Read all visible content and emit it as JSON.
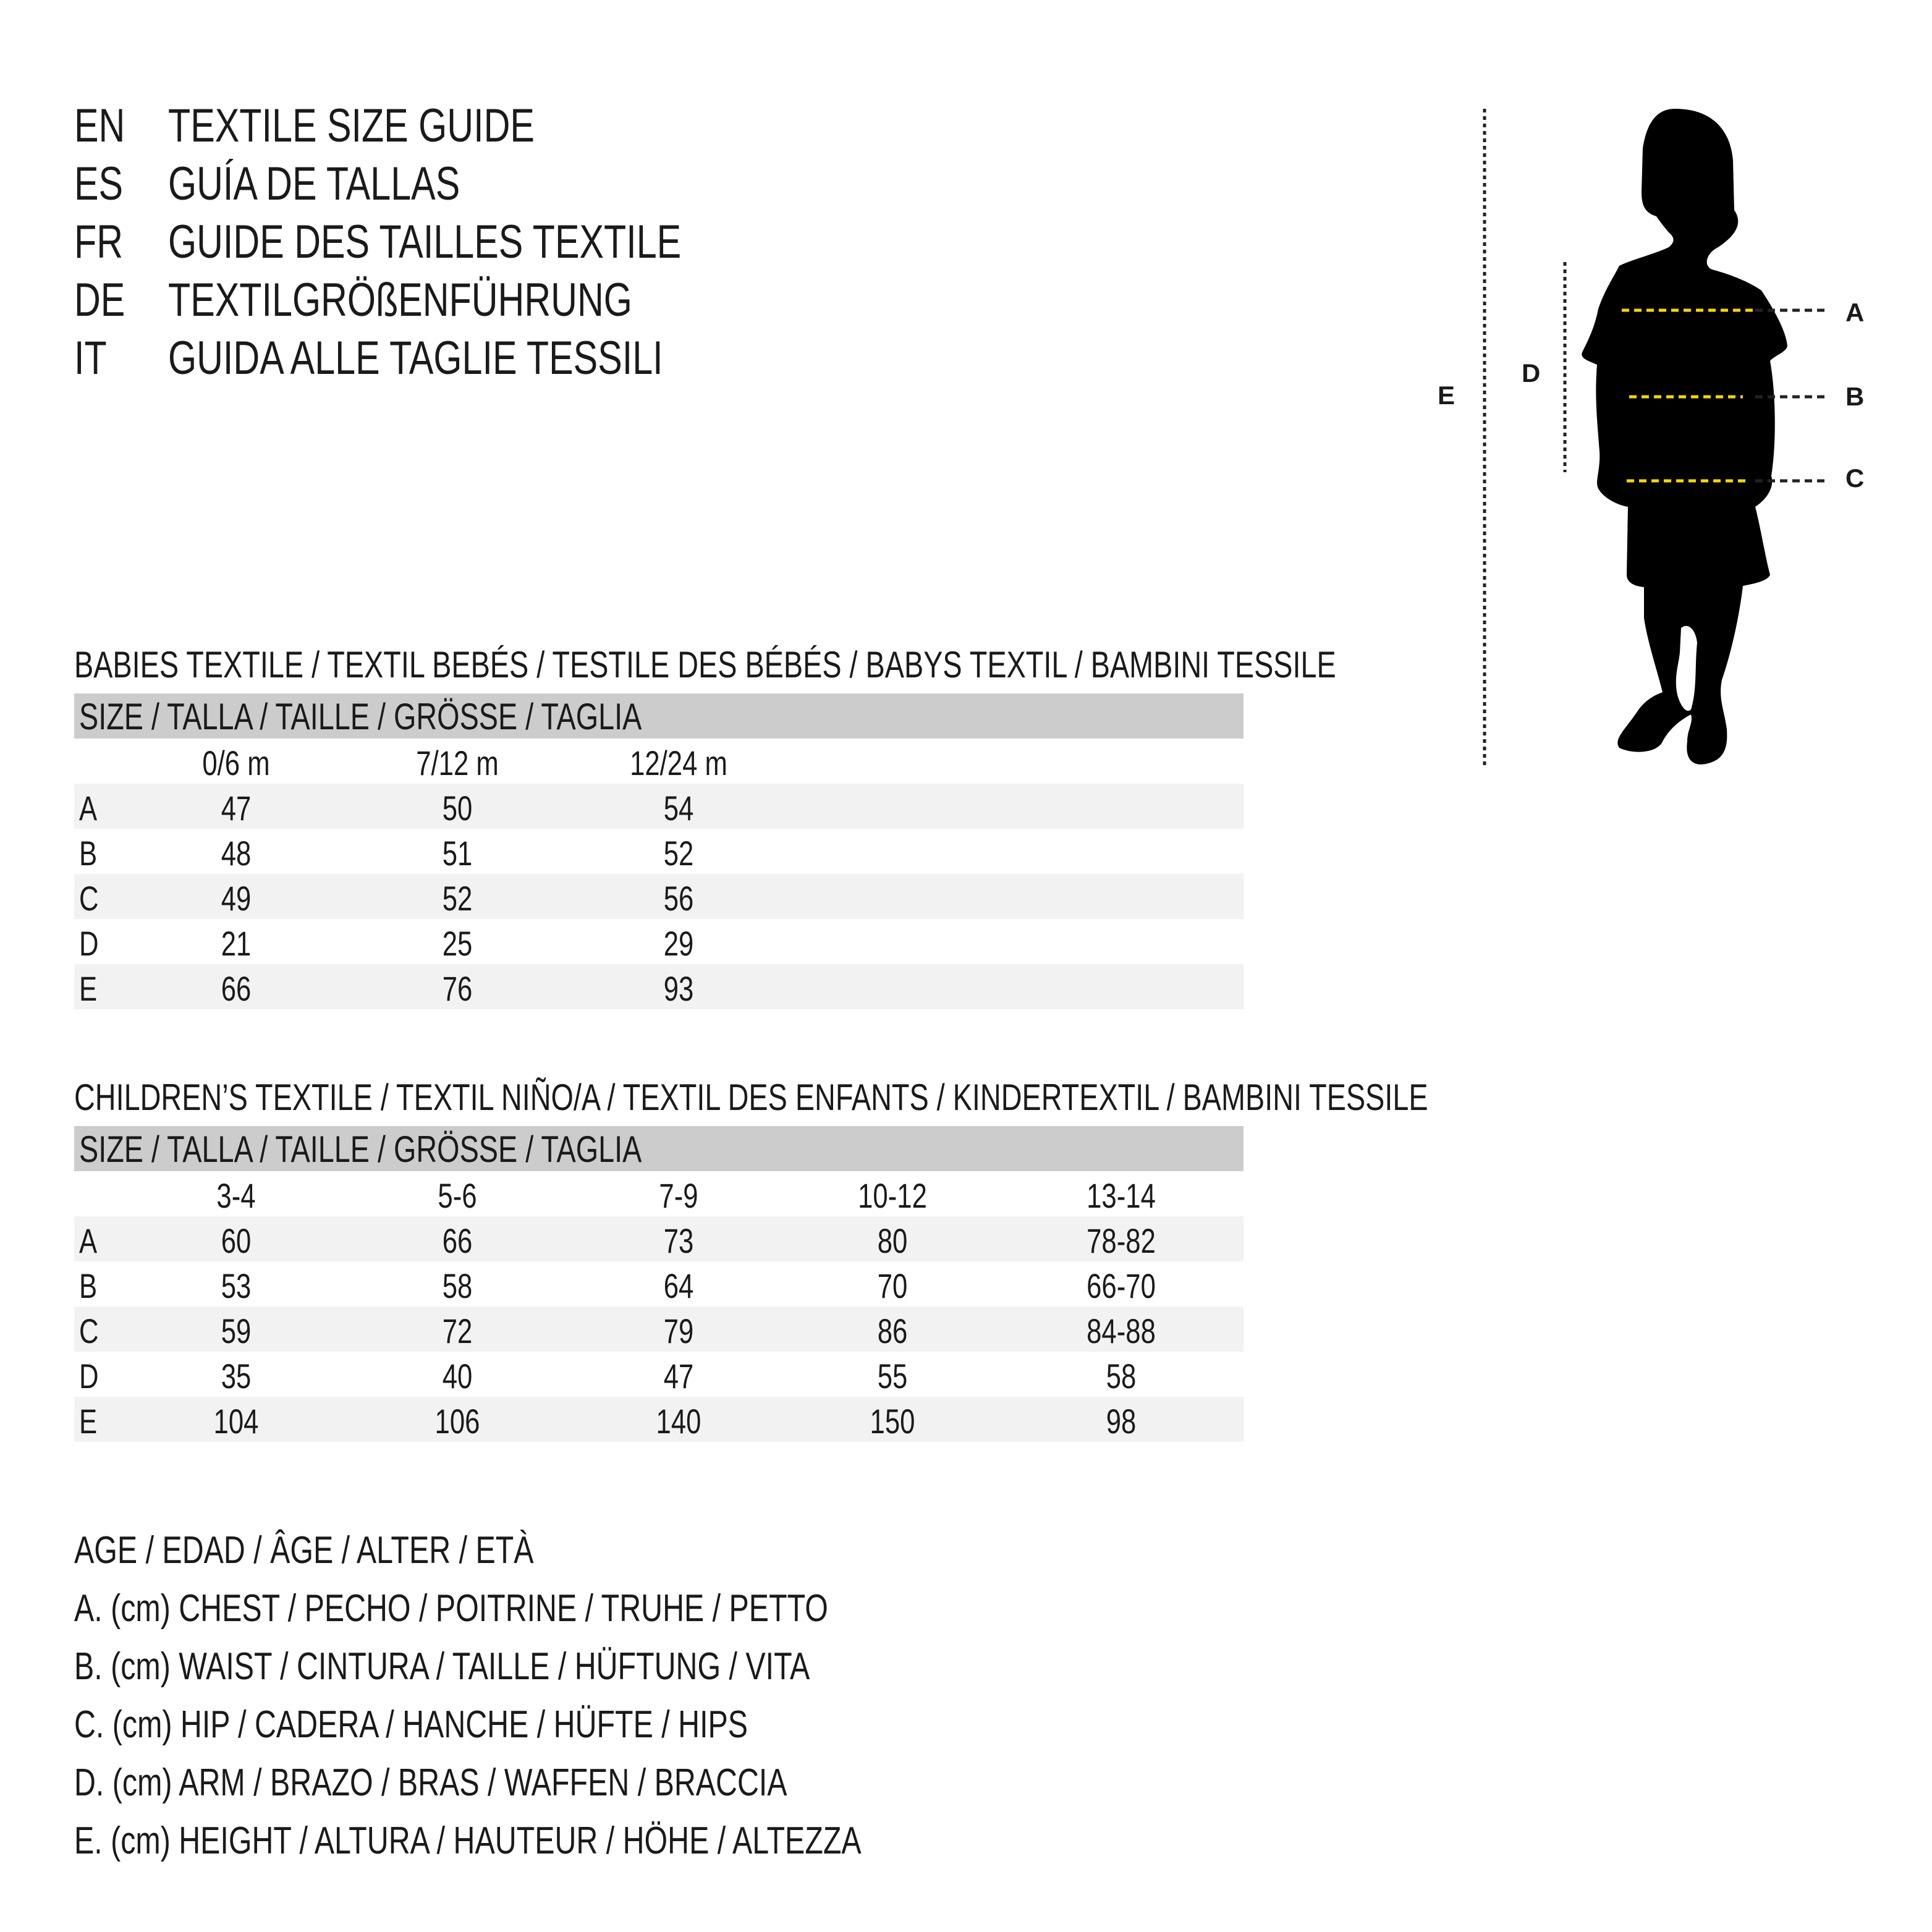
{
  "titles": [
    {
      "lang": "EN",
      "text": "TEXTILE SIZE GUIDE"
    },
    {
      "lang": "ES",
      "text": "GUÍA DE TALLAS"
    },
    {
      "lang": "FR",
      "text": "GUIDE DES TAILLES TEXTILE"
    },
    {
      "lang": "DE",
      "text": "TEXTILGRÖßENFÜHRUNG"
    },
    {
      "lang": "IT",
      "text": "GUIDA ALLE TAGLIE TESSILI"
    }
  ],
  "figure": {
    "labels": {
      "a": "A",
      "b": "B",
      "c": "C",
      "d": "D",
      "e": "E"
    },
    "colors": {
      "silhouette": "#000000",
      "measure_line": "#f5d800",
      "guide_line": "#222222"
    }
  },
  "babies": {
    "title": "BABIES TEXTILE / TEXTIL BEBÉS / TESTILE DES BÉBÉS / BABYS TEXTIL / BAMBINI TESSILE",
    "header": "SIZE / TALLA / TAILLE / GRÖSSE / TAGLIA",
    "columns": [
      "0/6 m",
      "7/12 m",
      "12/24 m"
    ],
    "rows": [
      {
        "label": "A",
        "values": [
          "47",
          "50",
          "54"
        ]
      },
      {
        "label": "B",
        "values": [
          "48",
          "51",
          "52"
        ]
      },
      {
        "label": "C",
        "values": [
          "49",
          "52",
          "56"
        ]
      },
      {
        "label": "D",
        "values": [
          "21",
          "25",
          "29"
        ]
      },
      {
        "label": "E",
        "values": [
          "66",
          "76",
          "93"
        ]
      }
    ]
  },
  "children": {
    "title": "CHILDREN’S TEXTILE / TEXTIL NIÑO/A / TEXTIL DES ENFANTS / KINDERTEXTIL / BAMBINI TESSILE",
    "header": "SIZE / TALLA / TAILLE / GRÖSSE / TAGLIA",
    "columns": [
      "3-4",
      "5-6",
      "7-9",
      "10-12",
      "13-14"
    ],
    "rows": [
      {
        "label": "A",
        "values": [
          "60",
          "66",
          "73",
          "80",
          "78-82"
        ]
      },
      {
        "label": "B",
        "values": [
          "53",
          "58",
          "64",
          "70",
          "66-70"
        ]
      },
      {
        "label": "C",
        "values": [
          "59",
          "72",
          "79",
          "86",
          "84-88"
        ]
      },
      {
        "label": "D",
        "values": [
          "35",
          "40",
          "47",
          "55",
          "58"
        ]
      },
      {
        "label": "E",
        "values": [
          "104",
          "106",
          "140",
          "150",
          "98"
        ]
      }
    ]
  },
  "legend": [
    "AGE / EDAD / ÂGE / ALTER / ETÀ",
    "A. (cm) CHEST / PECHO / POITRINE / TRUHE / PETTO",
    "B. (cm) WAIST / CINTURA / TAILLE / HÜFTUNG / VITA",
    "C. (cm) HIP / CADERA / HANCHE / HÜFTE / HIPS",
    "D. (cm) ARM / BRAZO / BRAS / WAFFEN / BRACCIA",
    "E. (cm) HEIGHT / ALTURA / HAUTEUR / HÖHE / ALTEZZA"
  ]
}
